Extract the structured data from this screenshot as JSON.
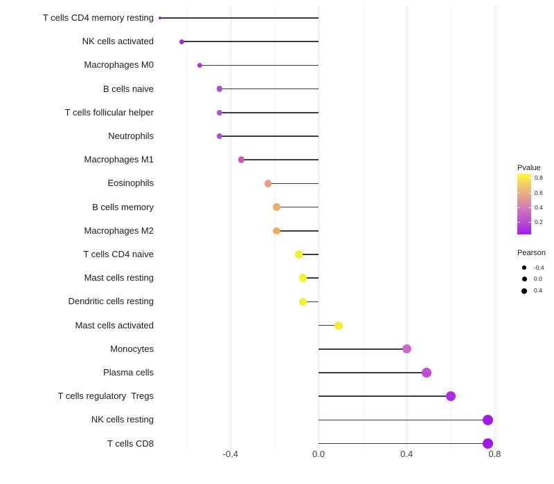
{
  "chart_data": {
    "type": "scatter",
    "subtype": "lollipop",
    "title": "",
    "xlabel": "",
    "ylabel": "",
    "xlim": [
      -0.75,
      1.04
    ],
    "grid": "vertical-only",
    "axis": {
      "major_breaks": [
        -0.4,
        0.0,
        0.4,
        0.8
      ],
      "major_labels": [
        "-0.4",
        "0.0",
        "0.4",
        "0.8"
      ],
      "minor_breaks": [
        -0.6,
        -0.2,
        0.2,
        0.6
      ]
    },
    "stem_origin": 0.0,
    "points": [
      {
        "label": "T cells CD4 memory resting",
        "pearson": -0.72,
        "color": "#7e2ec8",
        "diameter": 4
      },
      {
        "label": "NK cells activated",
        "pearson": -0.62,
        "color": "#9832d8",
        "diameter": 7
      },
      {
        "label": "Macrophages M0",
        "pearson": -0.54,
        "color": "#a23ad4",
        "diameter": 7.5
      },
      {
        "label": "B cells naive",
        "pearson": -0.45,
        "color": "#b04fd0",
        "diameter": 8.5
      },
      {
        "label": "T cells follicular helper",
        "pearson": -0.45,
        "color": "#b04fd0",
        "diameter": 8.5
      },
      {
        "label": "Neutrophils",
        "pearson": -0.45,
        "color": "#b04fd0",
        "diameter": 8.5
      },
      {
        "label": "Macrophages M1",
        "pearson": -0.35,
        "color": "#c75db8",
        "diameter": 9.5
      },
      {
        "label": "Eosinophils",
        "pearson": -0.23,
        "color": "#eaa07a",
        "diameter": 10.5
      },
      {
        "label": "B cells memory",
        "pearson": -0.19,
        "color": "#ecac68",
        "diameter": 10.5
      },
      {
        "label": "Macrophages M2",
        "pearson": -0.19,
        "color": "#ecab66",
        "diameter": 10.5
      },
      {
        "label": "T cells CD4 naive",
        "pearson": -0.09,
        "color": "#f3ef2e",
        "diameter": 11.5
      },
      {
        "label": "Mast cells resting",
        "pearson": -0.07,
        "color": "#f4f228",
        "diameter": 11.5
      },
      {
        "label": "Dendritic cells resting",
        "pearson": -0.07,
        "color": "#f4f228",
        "diameter": 11.5
      },
      {
        "label": "Mast cells activated",
        "pearson": 0.09,
        "color": "#f2ee2c",
        "diameter": 12
      },
      {
        "label": "Monocytes",
        "pearson": 0.4,
        "color": "#cd68ca",
        "diameter": 13
      },
      {
        "label": "Plasma cells",
        "pearson": 0.49,
        "color": "#c04fd6",
        "diameter": 13.5
      },
      {
        "label": "T cells regulatory  Tregs",
        "pearson": 0.6,
        "color": "#ab2ce4",
        "diameter": 14
      },
      {
        "label": "NK cells resting",
        "pearson": 0.77,
        "color": "#a01ae9",
        "diameter": 15
      },
      {
        "label": "T cells CD8",
        "pearson": 0.77,
        "color": "#a01ae9",
        "diameter": 15
      }
    ]
  },
  "legends": {
    "pvalue": {
      "title": "Pvalue",
      "tick_values": [
        0.8,
        0.6,
        0.4,
        0.2
      ],
      "tick_labels": [
        "0.8",
        "0.6",
        "0.4",
        "0.2"
      ],
      "gradient_low_color": "#a21ff2",
      "gradient_mid_color": "#e29a93",
      "gradient_high_color": "#fdfb38",
      "scale_min": 0.03,
      "scale_max": 0.86
    },
    "pearson": {
      "title": "Pearson",
      "items": [
        {
          "label": "-0.4",
          "diameter": 5.5
        },
        {
          "label": "0.0",
          "diameter": 7
        },
        {
          "label": "0.4",
          "diameter": 8
        }
      ]
    }
  }
}
